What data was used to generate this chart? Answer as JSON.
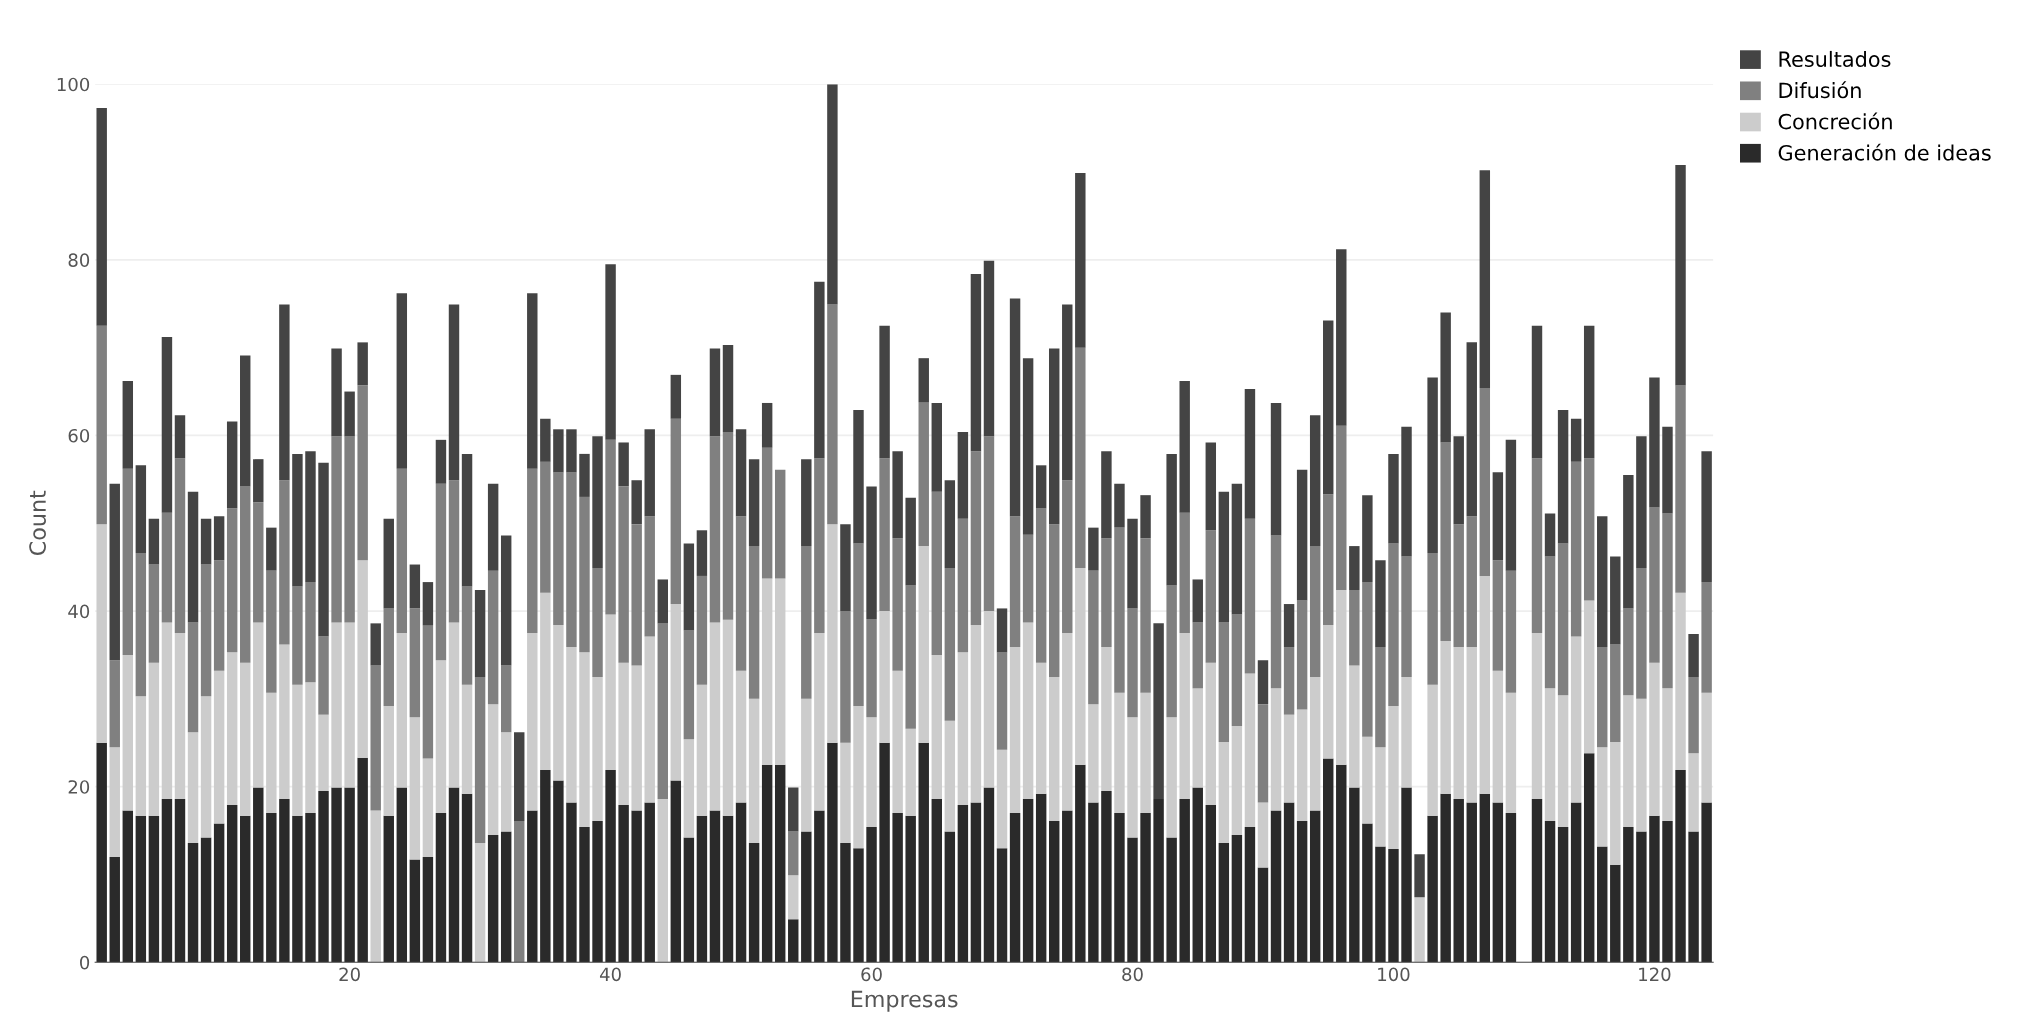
{
  "chart_data": {
    "type": "bar",
    "stacked": true,
    "xlabel": "Empresas",
    "ylabel": "Count",
    "x": [
      1,
      2,
      3,
      4,
      5,
      6,
      7,
      8,
      9,
      10,
      11,
      12,
      13,
      14,
      15,
      16,
      17,
      18,
      19,
      20,
      21,
      22,
      23,
      24,
      25,
      26,
      27,
      28,
      29,
      30,
      31,
      32,
      33,
      34,
      35,
      36,
      37,
      38,
      39,
      40,
      41,
      42,
      43,
      44,
      45,
      46,
      47,
      48,
      49,
      50,
      51,
      52,
      53,
      54,
      55,
      56,
      57,
      58,
      59,
      60,
      61,
      62,
      63,
      64,
      65,
      66,
      67,
      68,
      69,
      70,
      71,
      72,
      73,
      74,
      75,
      76,
      77,
      78,
      79,
      80,
      81,
      82,
      83,
      84,
      85,
      86,
      87,
      88,
      89,
      90,
      91,
      92,
      93,
      94,
      95,
      96,
      97,
      98,
      99,
      100,
      101,
      102,
      103,
      104,
      105,
      106,
      107,
      108,
      109,
      110,
      111,
      112,
      113,
      114,
      115,
      116,
      117,
      118,
      119,
      120,
      121,
      122,
      123,
      124
    ],
    "xlim": [
      0.5,
      124.5
    ],
    "xticks": [
      20,
      40,
      60,
      80,
      100,
      120
    ],
    "ylim": [
      0,
      100
    ],
    "yticks": [
      0,
      20,
      40,
      60,
      80,
      100
    ],
    "grid": "y",
    "legend": "top right",
    "series": [
      {
        "name": "Generación de ideas",
        "color": "#2a2a2a",
        "values": [
          25,
          12,
          17.3,
          16.7,
          16.7,
          18.6,
          18.6,
          13.6,
          14.2,
          15.8,
          17.9,
          16.7,
          19.9,
          17,
          18.6,
          16.7,
          17,
          19.5,
          19.9,
          19.9,
          23.3,
          0,
          16.7,
          19.9,
          11.7,
          12,
          17,
          19.9,
          19.2,
          0,
          14.5,
          14.9,
          0,
          17.3,
          21.9,
          20.7,
          18.2,
          15.4,
          16.1,
          21.9,
          17.9,
          17.3,
          18.2,
          0,
          20.7,
          14.2,
          16.7,
          17.3,
          16.7,
          18.2,
          13.6,
          22.5,
          22.5,
          4.9,
          14.9,
          17.3,
          25,
          13.6,
          13,
          15.4,
          25,
          17,
          16.7,
          25,
          18.6,
          14.9,
          17.9,
          18.2,
          19.9,
          13,
          17,
          18.6,
          19.2,
          16.1,
          17.3,
          22.5,
          18.2,
          19.5,
          17,
          14.2,
          17,
          18.6,
          14.2,
          18.6,
          19.9,
          17.9,
          13.6,
          14.5,
          15.4,
          10.8,
          17.3,
          18.2,
          16.1,
          17.3,
          23.2,
          22.5,
          19.9,
          15.8,
          13.2,
          12.9,
          19.9,
          0,
          16.7,
          19.2,
          18.6,
          18.2,
          19.2,
          18.2,
          17,
          0,
          18.6,
          16.1,
          15.4,
          18.2,
          23.8,
          13.2,
          11.1,
          15.4,
          14.9,
          16.7,
          16.1,
          21.9,
          14.9,
          18.2
        ]
      },
      {
        "name": "Concreción",
        "color": "#cccccc",
        "values": [
          24.9,
          12.5,
          17.7,
          13.6,
          17.4,
          20.1,
          18.9,
          12.6,
          16.1,
          17.4,
          17.4,
          17.4,
          18.8,
          13.7,
          17.6,
          14.9,
          14.9,
          8.7,
          18.8,
          18.8,
          22.5,
          17.3,
          12.5,
          17.6,
          16.2,
          11.2,
          17.4,
          18.8,
          12.4,
          13.6,
          14.9,
          11.3,
          0,
          20.2,
          20.2,
          17.7,
          17.7,
          19.9,
          16.4,
          17.7,
          16.2,
          16.5,
          18.9,
          18.6,
          20.1,
          11.2,
          14.9,
          21.4,
          22.3,
          15,
          16.4,
          21.2,
          21.2,
          5,
          15.1,
          20.2,
          24.9,
          11.4,
          16.2,
          12.5,
          15,
          16.2,
          9.9,
          22.4,
          16.4,
          12.6,
          17.4,
          20.2,
          20.1,
          11.2,
          18.9,
          20.1,
          14.9,
          16.4,
          20.2,
          22.4,
          11.2,
          16.4,
          13.7,
          13.7,
          13.7,
          0,
          13.7,
          18.9,
          11.3,
          16.2,
          11.5,
          12.4,
          17.5,
          7.4,
          13.9,
          10,
          12.7,
          15.2,
          15.2,
          19.9,
          13.9,
          9.9,
          11.3,
          16.3,
          12.6,
          7.4,
          14.9,
          17.4,
          17.3,
          17.7,
          24.8,
          15,
          13.7,
          0,
          18.9,
          15.1,
          15,
          18.9,
          17.4,
          11.3,
          14,
          15,
          15.1,
          17.4,
          15.1,
          20.2,
          8.9,
          12.5
        ]
      },
      {
        "name": "Difusión",
        "color": "#808080",
        "values": [
          22.6,
          9.9,
          21.2,
          16.3,
          11.2,
          12.5,
          19.9,
          12.5,
          15,
          12.6,
          16.4,
          20.1,
          13.7,
          13.9,
          18.7,
          11.2,
          11.4,
          8.9,
          21.2,
          21.2,
          19.9,
          16.5,
          11.1,
          18.7,
          12.4,
          15.2,
          20.1,
          16.2,
          11.2,
          18.9,
          15.2,
          7.6,
          16.1,
          18.7,
          14.9,
          17.4,
          19.9,
          17.7,
          12.4,
          19.9,
          20.1,
          16.1,
          13.7,
          20,
          21.1,
          12.4,
          12.4,
          21.2,
          21.4,
          17.6,
          17.4,
          14.9,
          12.4,
          5,
          17.4,
          19.9,
          25,
          15,
          18.5,
          11.2,
          17.4,
          15.1,
          16.3,
          16.4,
          18.6,
          17.4,
          15.2,
          19.8,
          19.9,
          11.1,
          14.9,
          10,
          17.6,
          17.4,
          17.4,
          25.1,
          15.2,
          12.4,
          18.8,
          12.4,
          17.6,
          0,
          15,
          13.7,
          7.5,
          15.1,
          13.6,
          12.7,
          17.6,
          11.2,
          17.4,
          7.7,
          12.4,
          14.9,
          14.9,
          18.7,
          8.6,
          17.6,
          11.4,
          18.5,
          13.7,
          0,
          15,
          22.6,
          14,
          14.9,
          21.4,
          12.6,
          13.9,
          0,
          19.9,
          15,
          17.3,
          19.9,
          16.2,
          11.4,
          11.1,
          9.9,
          14.9,
          17.7,
          19.9,
          23.6,
          8.7,
          12.6
        ]
      },
      {
        "name": "Resultados",
        "color": "#444444",
        "values": [
          24.8,
          20.1,
          10,
          10,
          5.2,
          20,
          4.9,
          14.9,
          5.2,
          5,
          9.9,
          14.9,
          4.9,
          4.9,
          20,
          15.1,
          14.9,
          19.8,
          10,
          5.1,
          4.9,
          4.8,
          10.2,
          20,
          5,
          4.9,
          5,
          20,
          15.1,
          9.9,
          9.9,
          14.8,
          10.1,
          20,
          4.9,
          4.9,
          4.9,
          4.9,
          15,
          20,
          5,
          5,
          9.9,
          5,
          5,
          9.9,
          5.2,
          10,
          9.9,
          9.9,
          9.9,
          5.1,
          0,
          5,
          9.9,
          20.1,
          25.1,
          9.9,
          15.2,
          15.1,
          15.1,
          9.9,
          10,
          5,
          10.1,
          10,
          9.9,
          20.2,
          20,
          5,
          24.8,
          20.1,
          4.9,
          20,
          20,
          19.9,
          4.9,
          9.9,
          5,
          10.2,
          4.9,
          20,
          15,
          15,
          4.9,
          10,
          14.9,
          14.9,
          14.8,
          5,
          15.1,
          4.9,
          14.9,
          14.9,
          19.8,
          20.1,
          5,
          9.9,
          9.9,
          10.2,
          14.8,
          4.9,
          20,
          14.8,
          10,
          19.8,
          24.8,
          10,
          14.9,
          0,
          15.1,
          4.9,
          15.2,
          4.9,
          15.1,
          14.9,
          10,
          15.2,
          15,
          14.8,
          9.9,
          25.1,
          4.9,
          14.9
        ]
      }
    ]
  }
}
